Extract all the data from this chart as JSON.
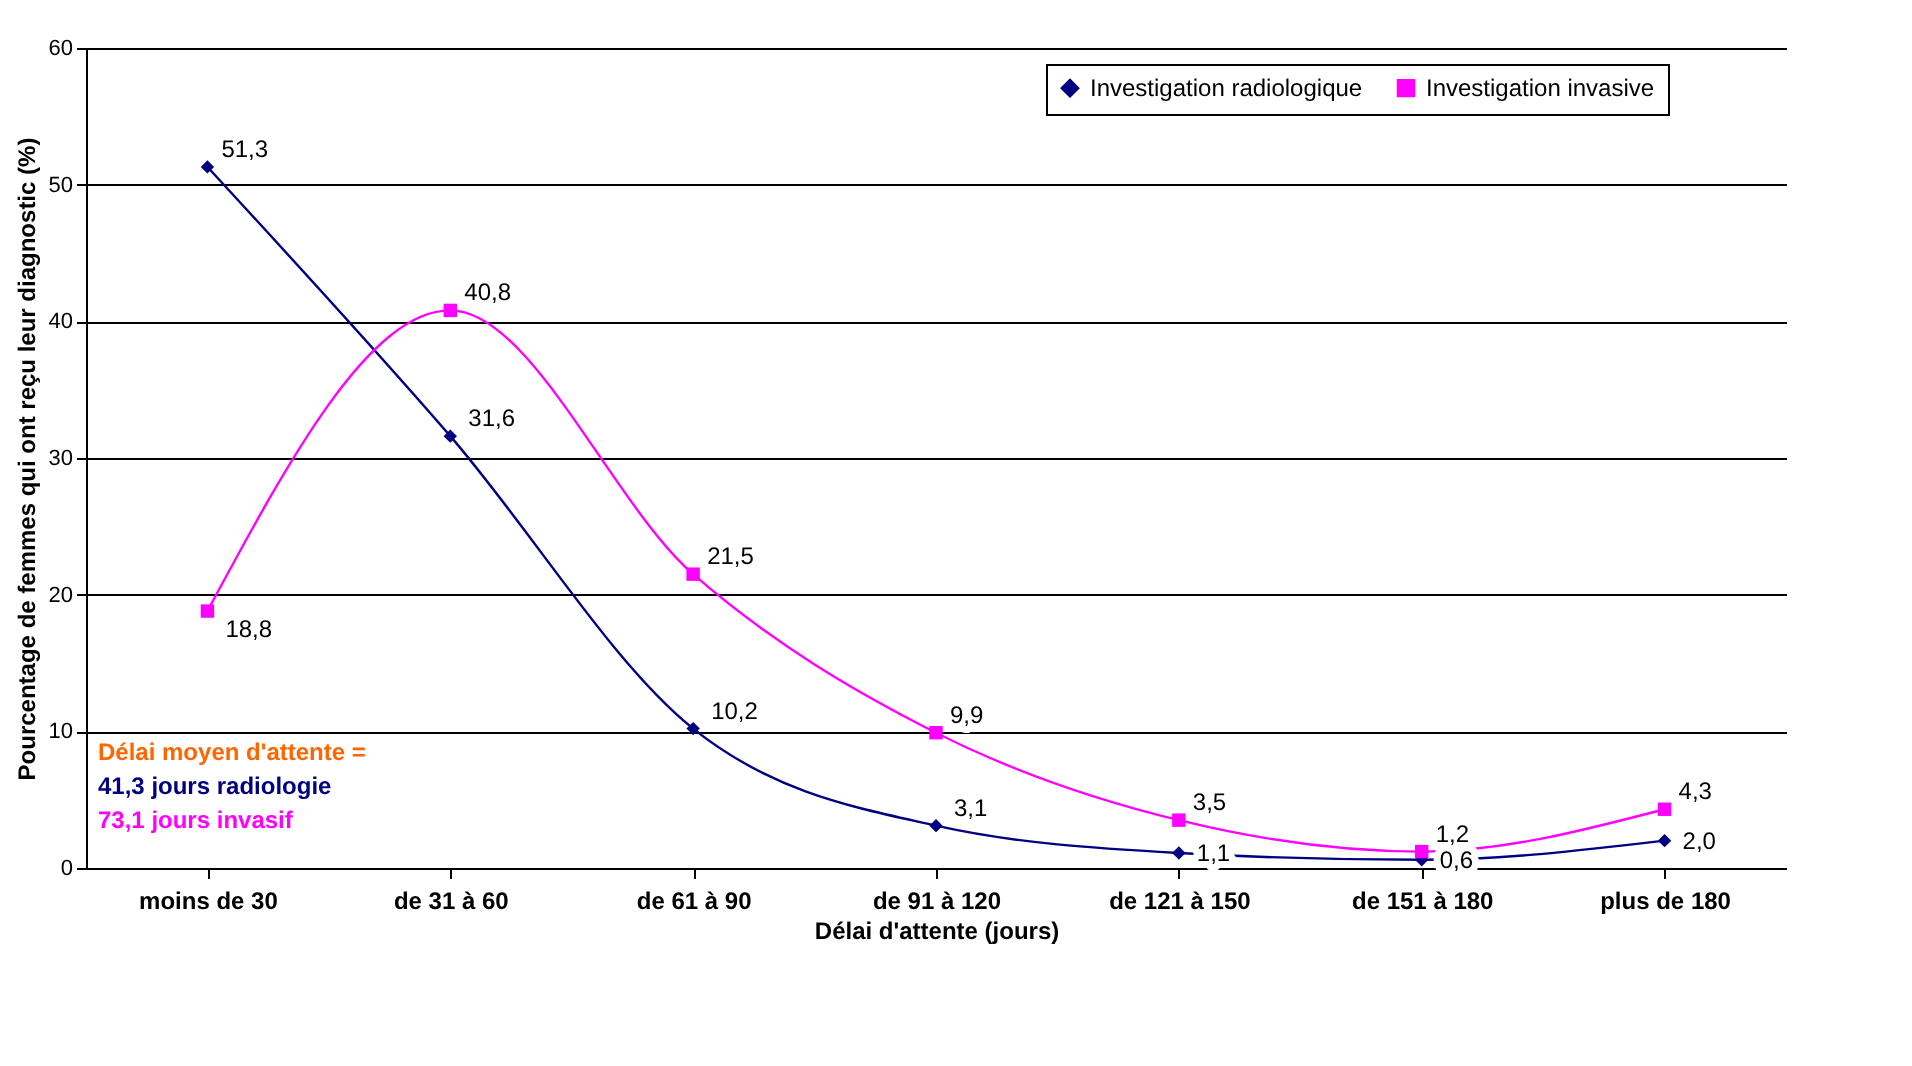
{
  "chart_data": {
    "type": "line",
    "xlabel": "Délai d'attente (jours)",
    "ylabel": "Pourcentage de femmes qui ont reçu leur diagnostic (%)",
    "categories": [
      "moins de 30",
      "de 31 à 60",
      "de 61 à 90",
      "de 91 à 120",
      "de 121 à 150",
      "de 151 à 180",
      "plus de 180"
    ],
    "series": [
      {
        "name": "Investigation radiologique",
        "color": "#000080",
        "marker": "diamond",
        "values": [
          51.3,
          31.6,
          10.2,
          3.1,
          1.1,
          0.6,
          2.0
        ],
        "value_labels": [
          "51,3",
          "31,6",
          "10,2",
          "3,1",
          "1,1",
          "0,6",
          "2,0"
        ]
      },
      {
        "name": "Investigation invasive",
        "color": "#ff00ff",
        "marker": "square",
        "values": [
          18.8,
          40.8,
          21.5,
          9.9,
          3.5,
          1.2,
          4.3
        ],
        "value_labels": [
          "18,8",
          "40,8",
          "21,5",
          "9,9",
          "3,5",
          "1,2",
          "4,3"
        ]
      }
    ],
    "ylim": [
      0,
      60
    ],
    "yticks": [
      0,
      10,
      20,
      30,
      40,
      50,
      60
    ],
    "grid": "y",
    "legend": "top right",
    "annotations": [
      "Délai moyen d'attente =",
      "41,3 jours radiologie",
      "73,1 jours invasif"
    ]
  }
}
